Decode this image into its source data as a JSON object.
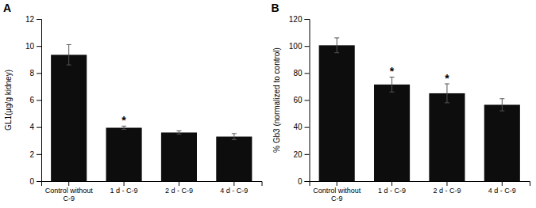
{
  "chart_data": [
    {
      "type": "bar",
      "title": "A",
      "categories": [
        "Control without\nC-9",
        "1 d - C-9",
        "2 d - C-9",
        "4 d - C-9"
      ],
      "values": [
        9.35,
        3.95,
        3.6,
        3.3
      ],
      "errors": [
        0.75,
        0.12,
        0.12,
        0.22
      ],
      "annotations": [
        null,
        "*",
        null,
        null
      ],
      "ylabel": "GL1(μg/g kidney)",
      "ylim": [
        0,
        12
      ],
      "yticks": [
        0,
        2,
        4,
        6,
        8,
        10,
        12
      ],
      "color": "#0d0d0d"
    },
    {
      "type": "bar",
      "title": "B",
      "categories": [
        "Control without\nC-9",
        "1 d - C-9",
        "2 d - C-9",
        "4 d - C-9"
      ],
      "values": [
        100.5,
        71.5,
        65.0,
        56.5
      ],
      "errors": [
        5.5,
        5.5,
        7.0,
        4.5
      ],
      "annotations": [
        null,
        "*",
        "*",
        null
      ],
      "ylabel": "% Gb3 (normalized to control)",
      "ylim": [
        0,
        120
      ],
      "yticks": [
        0,
        20,
        40,
        60,
        80,
        100,
        120
      ],
      "color": "#0d0d0d"
    }
  ]
}
